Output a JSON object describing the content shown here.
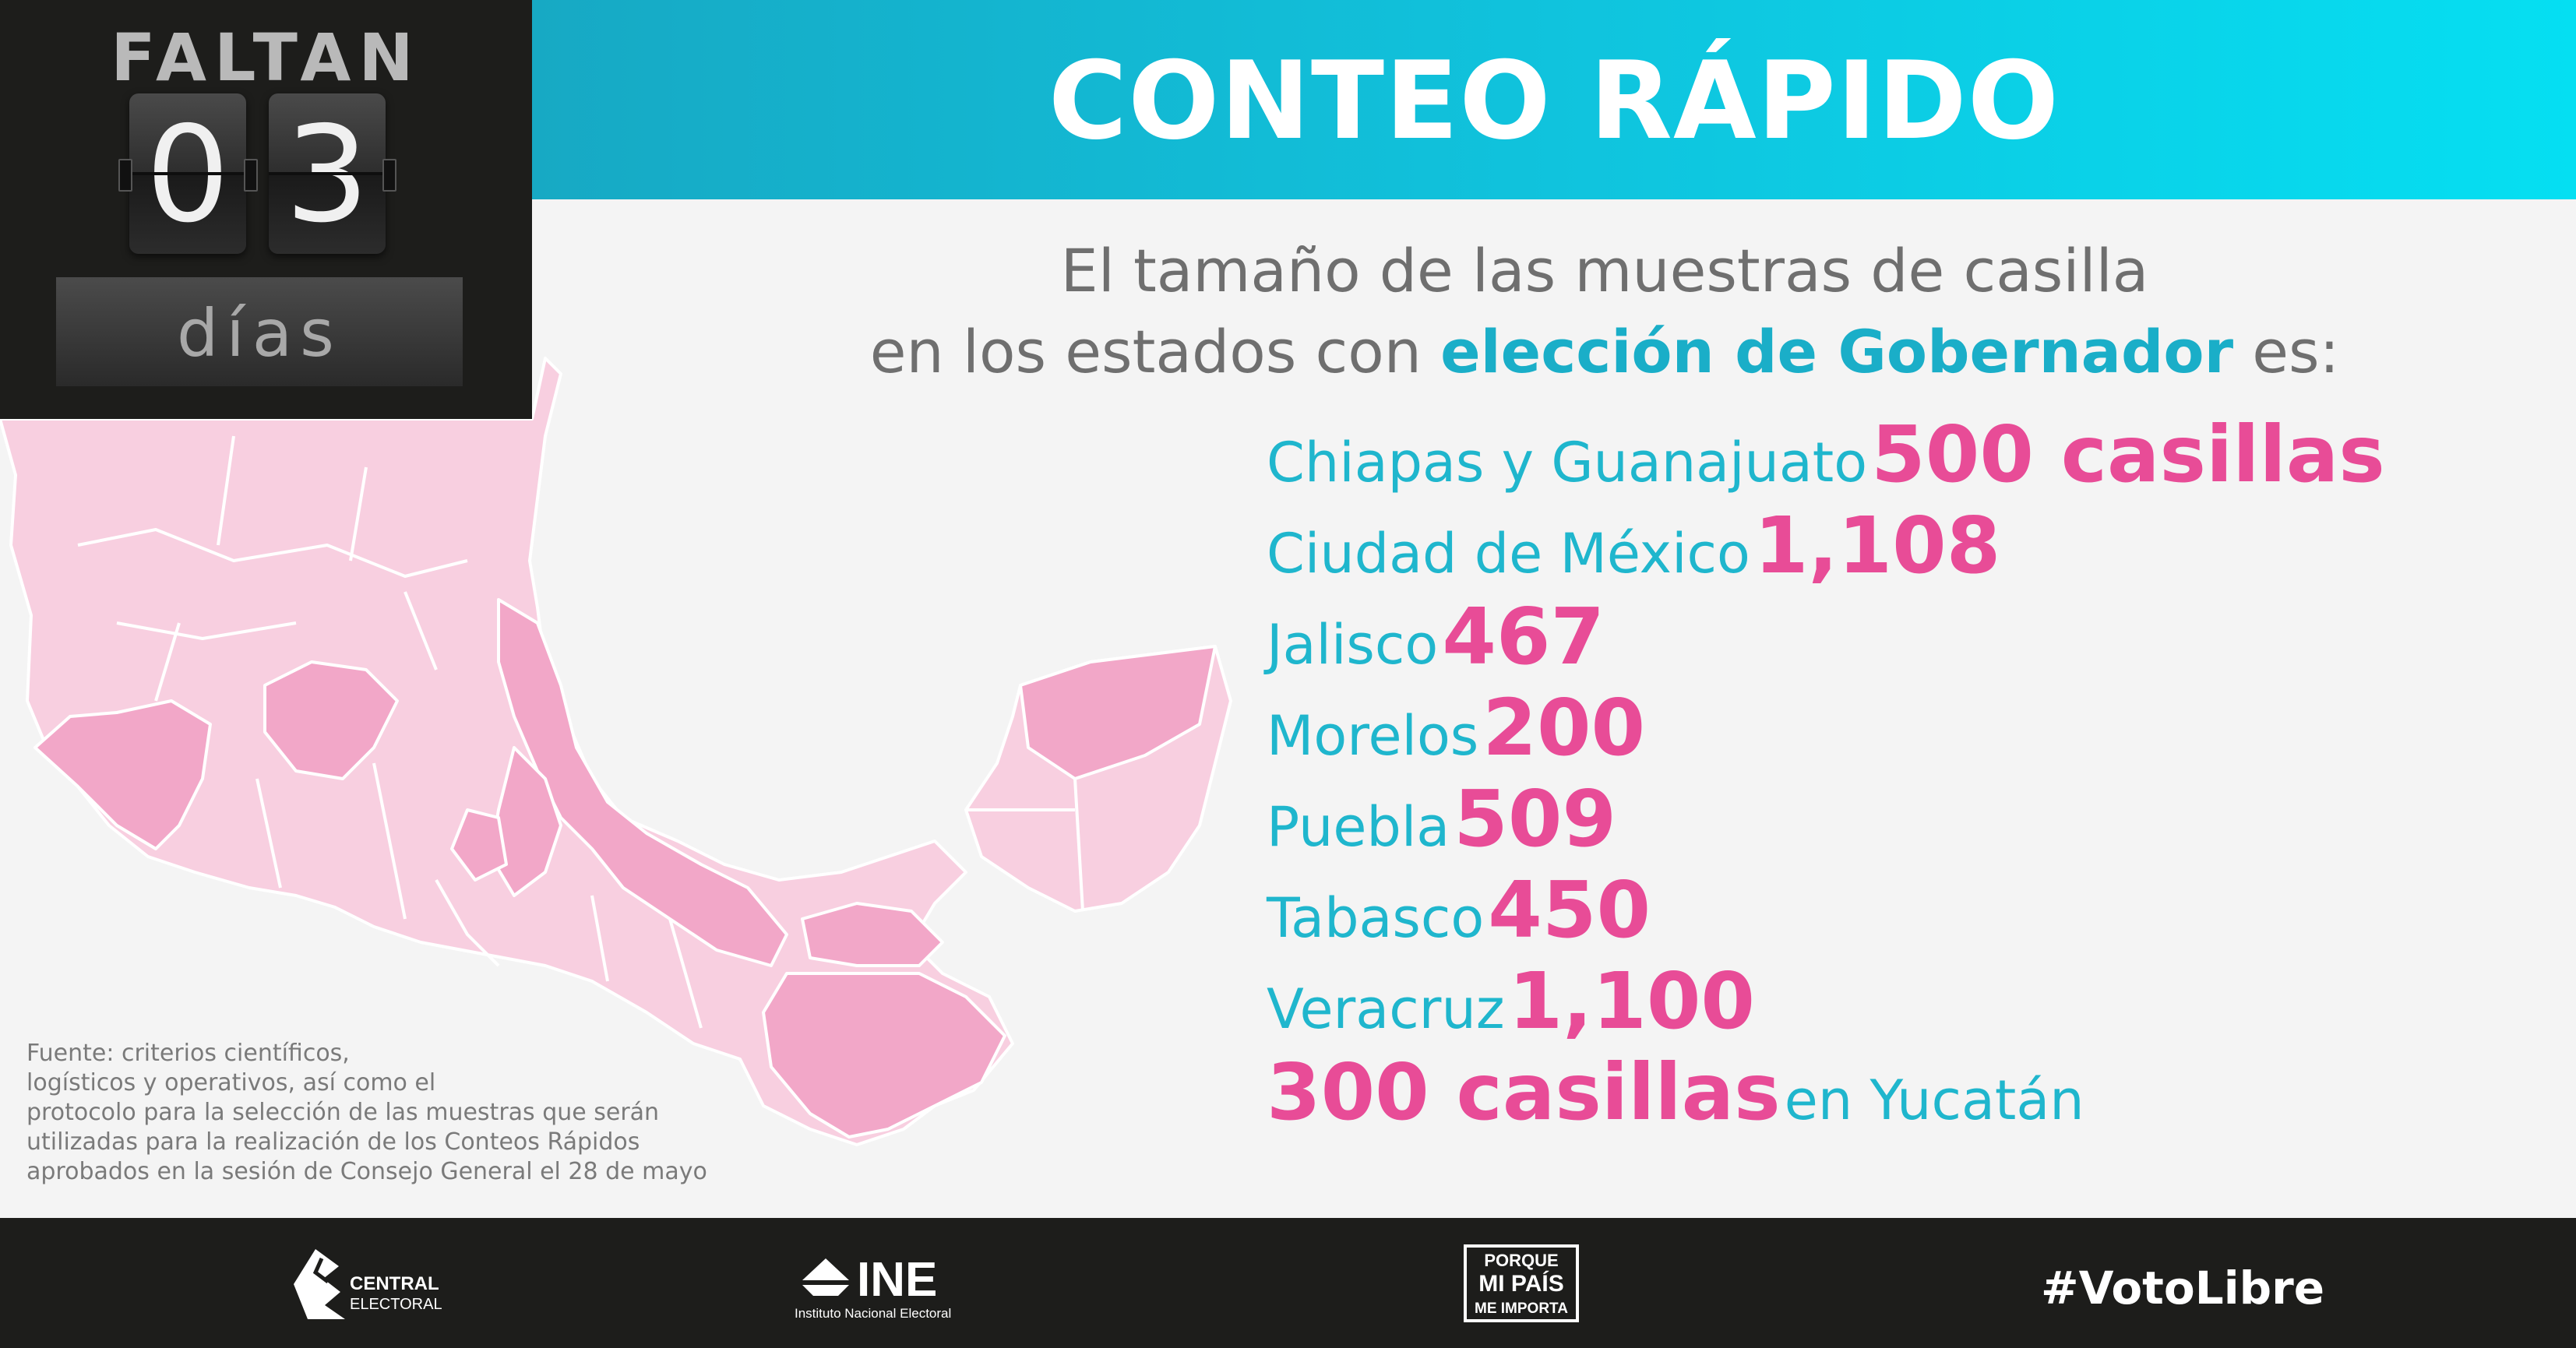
{
  "countdown": {
    "faltan": "FALTAN",
    "digit1": "0",
    "digit2": "3",
    "dias": "días"
  },
  "banner": {
    "title": "CONTEO RÁPIDO"
  },
  "subtitle": {
    "line1": "El tamaño de las muestras de casilla",
    "line2_pre": "en los estados con ",
    "line2_highlight": "elección de Gobernador",
    "line2_post": " es:"
  },
  "stats": [
    {
      "label": "Chiapas y Guanajuato",
      "value": "500 casillas"
    },
    {
      "label": "Ciudad de México",
      "value": "1,108"
    },
    {
      "label": "Jalisco",
      "value": "467"
    },
    {
      "label": "Morelos",
      "value": "200"
    },
    {
      "label": "Puebla",
      "value": "509"
    },
    {
      "label": "Tabasco",
      "value": "450"
    },
    {
      "label": "Veracruz",
      "value": "1,100"
    }
  ],
  "yucatan": {
    "value": "300 casillas",
    "label": "en Yucatán"
  },
  "source": {
    "line1": "Fuente: criterios científicos,",
    "line2": "logísticos y operativos, así como el",
    "line3": "protocolo para la selección de las muestras que serán",
    "line4": "utilizadas para la realización de los Conteos Rápidos",
    "line5": "aprobados en la sesión de Consejo General el 28 de mayo"
  },
  "footer": {
    "central_electoral_line1": "CENTRAL",
    "central_electoral_line2": "ELECTORAL",
    "ine_name": "INE",
    "ine_full": "Instituto Nacional Electoral",
    "pmp_line1": "PORQUE",
    "pmp_line2": "MI PAÍS",
    "pmp_line3": "ME IMPORTA",
    "hashtag": "#VotoLibre"
  },
  "colors": {
    "banner_gradient": [
      "#17a9c4",
      "#05dff2"
    ],
    "label_cyan": "#1fb6cd",
    "value_pink": "#e84c97",
    "map_light": "#f8cfe0",
    "map_dark": "#f2a7c8",
    "dark_bg": "#1d1d1b"
  }
}
